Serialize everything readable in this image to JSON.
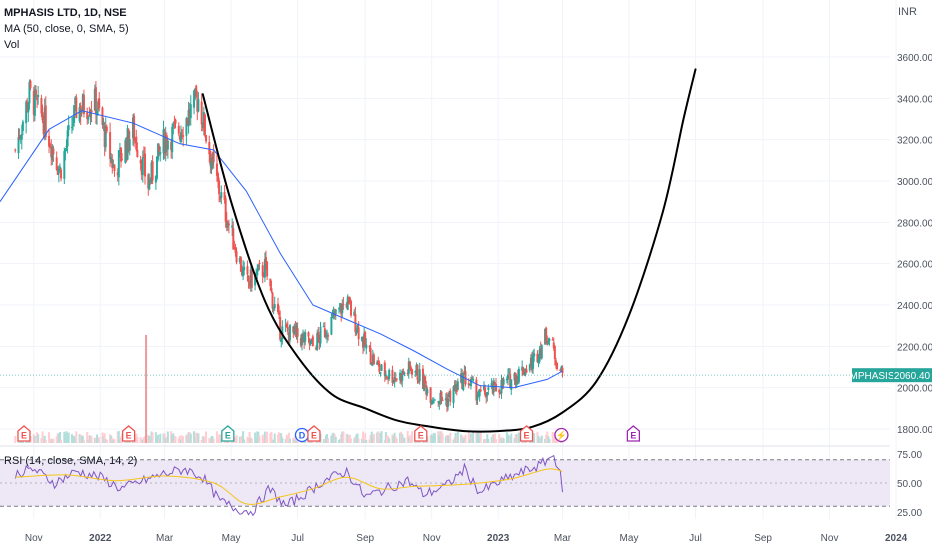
{
  "header": {
    "symbol_line": "MPHASIS LTD, 1D, NSE",
    "ma_line": "MA (50, close, 0, SMA, 5)",
    "vol_line": "Vol",
    "currency": "INR"
  },
  "rsi": {
    "legend": "RSI (14, close, SMA, 14, 2)",
    "ticks": [
      "75.00",
      "50.00",
      "25.00"
    ],
    "upper": 70,
    "lower": 30,
    "min": 20,
    "max": 77
  },
  "price_tag": {
    "symbol": "MPHASIS",
    "value": "2060.40"
  },
  "colors": {
    "up": "#26a69a",
    "down": "#ef5350",
    "ma": "#2962ff",
    "rsi": "#7e57c2",
    "rsi_ma": "#f5c518",
    "rsi_band": "#ede7f6",
    "curve": "#000000",
    "earnings": "#ef5350",
    "price_tag": "#26a69a"
  },
  "chart_data": {
    "type": "candlestick",
    "title": "MPHASIS LTD, 1D, NSE",
    "y_ticks": [
      "3600.00",
      "3400.00",
      "3200.00",
      "3000.00",
      "2800.00",
      "2600.00",
      "2400.00",
      "2200.00",
      "2000.00",
      "1800.00"
    ],
    "x_ticks": [
      "Nov",
      "2022",
      "Mar",
      "May",
      "Jul",
      "Sep",
      "Nov",
      "2023",
      "Mar",
      "May",
      "Jul",
      "Sep",
      "Nov",
      "2024"
    ],
    "ylim": [
      1700,
      3800
    ],
    "last_price": 2060.4,
    "close_path": [
      {
        "date": "2021-10-15",
        "price": 3150
      },
      {
        "date": "2021-10-28",
        "price": 3420
      },
      {
        "date": "2021-11-10",
        "price": 3300
      },
      {
        "date": "2021-11-25",
        "price": 3050
      },
      {
        "date": "2021-12-10",
        "price": 3350
      },
      {
        "date": "2021-12-28",
        "price": 3380
      },
      {
        "date": "2022-01-14",
        "price": 3050
      },
      {
        "date": "2022-01-31",
        "price": 3250
      },
      {
        "date": "2022-02-14",
        "price": 2980
      },
      {
        "date": "2022-03-01",
        "price": 3200
      },
      {
        "date": "2022-03-15",
        "price": 3250
      },
      {
        "date": "2022-04-01",
        "price": 3400
      },
      {
        "date": "2022-04-15",
        "price": 3050
      },
      {
        "date": "2022-05-01",
        "price": 2750
      },
      {
        "date": "2022-05-15",
        "price": 2500
      },
      {
        "date": "2022-06-01",
        "price": 2580
      },
      {
        "date": "2022-06-15",
        "price": 2280
      },
      {
        "date": "2022-07-01",
        "price": 2250
      },
      {
        "date": "2022-07-15",
        "price": 2200
      },
      {
        "date": "2022-08-01",
        "price": 2320
      },
      {
        "date": "2022-08-15",
        "price": 2420
      },
      {
        "date": "2022-09-01",
        "price": 2200
      },
      {
        "date": "2022-09-15",
        "price": 2080
      },
      {
        "date": "2022-10-01",
        "price": 2050
      },
      {
        "date": "2022-10-15",
        "price": 2100
      },
      {
        "date": "2022-11-01",
        "price": 1960
      },
      {
        "date": "2022-11-15",
        "price": 1940
      },
      {
        "date": "2022-12-01",
        "price": 2050
      },
      {
        "date": "2022-12-15",
        "price": 1960
      },
      {
        "date": "2023-01-01",
        "price": 2000
      },
      {
        "date": "2023-01-15",
        "price": 2050
      },
      {
        "date": "2023-02-01",
        "price": 2120
      },
      {
        "date": "2023-02-15",
        "price": 2260
      },
      {
        "date": "2023-03-01",
        "price": 2060.4
      }
    ],
    "ma50": [
      {
        "date": "2021-10-01",
        "value": 2900
      },
      {
        "date": "2021-11-15",
        "value": 3250
      },
      {
        "date": "2021-12-15",
        "value": 3340
      },
      {
        "date": "2022-01-31",
        "value": 3280
      },
      {
        "date": "2022-03-15",
        "value": 3180
      },
      {
        "date": "2022-04-15",
        "value": 3150
      },
      {
        "date": "2022-05-15",
        "value": 2950
      },
      {
        "date": "2022-06-15",
        "value": 2650
      },
      {
        "date": "2022-07-15",
        "value": 2400
      },
      {
        "date": "2022-08-15",
        "value": 2330
      },
      {
        "date": "2022-09-15",
        "value": 2260
      },
      {
        "date": "2022-10-15",
        "value": 2180
      },
      {
        "date": "2022-11-15",
        "value": 2090
      },
      {
        "date": "2022-12-15",
        "value": 2010
      },
      {
        "date": "2023-01-15",
        "value": 2000
      },
      {
        "date": "2023-02-15",
        "value": 2040
      },
      {
        "date": "2023-03-01",
        "value": 2080
      }
    ],
    "cup_curve": [
      {
        "date": "2022-04-05",
        "price": 3420
      },
      {
        "date": "2022-05-01",
        "price": 2900
      },
      {
        "date": "2022-06-01",
        "price": 2420
      },
      {
        "date": "2022-07-01",
        "price": 2150
      },
      {
        "date": "2022-08-01",
        "price": 1970
      },
      {
        "date": "2022-09-01",
        "price": 1900
      },
      {
        "date": "2022-10-01",
        "price": 1840
      },
      {
        "date": "2022-11-01",
        "price": 1810
      },
      {
        "date": "2022-12-01",
        "price": 1790
      },
      {
        "date": "2023-01-01",
        "price": 1790
      },
      {
        "date": "2023-02-01",
        "price": 1810
      },
      {
        "date": "2023-03-01",
        "price": 1880
      },
      {
        "date": "2023-04-01",
        "price": 2030
      },
      {
        "date": "2023-05-01",
        "price": 2350
      },
      {
        "date": "2023-06-01",
        "price": 2850
      },
      {
        "date": "2023-06-20",
        "price": 3300
      },
      {
        "date": "2023-07-01",
        "price": 3540
      }
    ],
    "event_markers": [
      {
        "date": "2021-10-23",
        "label": "E",
        "kind": "earnings"
      },
      {
        "date": "2022-01-27",
        "label": "E",
        "kind": "earnings"
      },
      {
        "date": "2022-04-28",
        "label": "E",
        "kind": "earnings-future"
      },
      {
        "date": "2022-07-05",
        "label": "D",
        "kind": "dividend"
      },
      {
        "date": "2022-07-16",
        "label": "E",
        "kind": "earnings"
      },
      {
        "date": "2022-10-22",
        "label": "E",
        "kind": "earnings"
      },
      {
        "date": "2023-01-27",
        "label": "E",
        "kind": "earnings"
      },
      {
        "date": "2023-02-28",
        "label": "⚡",
        "kind": "split"
      },
      {
        "date": "2023-05-05",
        "label": "E",
        "kind": "earnings-future"
      }
    ],
    "rsi_series": [
      {
        "date": "2021-10-15",
        "value": 58
      },
      {
        "date": "2021-11-01",
        "value": 62
      },
      {
        "date": "2021-11-20",
        "value": 50
      },
      {
        "date": "2021-12-10",
        "value": 60
      },
      {
        "date": "2022-01-01",
        "value": 55
      },
      {
        "date": "2022-01-20",
        "value": 45
      },
      {
        "date": "2022-02-10",
        "value": 52
      },
      {
        "date": "2022-03-01",
        "value": 58
      },
      {
        "date": "2022-03-20",
        "value": 62
      },
      {
        "date": "2022-04-05",
        "value": 55
      },
      {
        "date": "2022-04-20",
        "value": 35
      },
      {
        "date": "2022-05-05",
        "value": 28
      },
      {
        "date": "2022-05-20",
        "value": 25
      },
      {
        "date": "2022-06-05",
        "value": 45
      },
      {
        "date": "2022-06-20",
        "value": 30
      },
      {
        "date": "2022-07-10",
        "value": 42
      },
      {
        "date": "2022-07-25",
        "value": 52
      },
      {
        "date": "2022-08-15",
        "value": 60
      },
      {
        "date": "2022-09-01",
        "value": 38
      },
      {
        "date": "2022-09-20",
        "value": 45
      },
      {
        "date": "2022-10-10",
        "value": 52
      },
      {
        "date": "2022-10-25",
        "value": 40
      },
      {
        "date": "2022-11-15",
        "value": 48
      },
      {
        "date": "2022-12-01",
        "value": 62
      },
      {
        "date": "2022-12-15",
        "value": 42
      },
      {
        "date": "2023-01-05",
        "value": 52
      },
      {
        "date": "2023-01-25",
        "value": 60
      },
      {
        "date": "2023-02-10",
        "value": 66
      },
      {
        "date": "2023-02-20",
        "value": 74
      },
      {
        "date": "2023-02-27",
        "value": 62
      },
      {
        "date": "2023-03-01",
        "value": 38
      }
    ],
    "rsi_ma_series": [
      {
        "date": "2021-10-15",
        "value": 55
      },
      {
        "date": "2021-12-01",
        "value": 57
      },
      {
        "date": "2022-01-15",
        "value": 52
      },
      {
        "date": "2022-03-01",
        "value": 56
      },
      {
        "date": "2022-04-15",
        "value": 50
      },
      {
        "date": "2022-05-15",
        "value": 32
      },
      {
        "date": "2022-06-15",
        "value": 38
      },
      {
        "date": "2022-07-15",
        "value": 45
      },
      {
        "date": "2022-08-15",
        "value": 55
      },
      {
        "date": "2022-09-15",
        "value": 45
      },
      {
        "date": "2022-10-15",
        "value": 47
      },
      {
        "date": "2022-11-15",
        "value": 48
      },
      {
        "date": "2022-12-15",
        "value": 50
      },
      {
        "date": "2023-01-15",
        "value": 54
      },
      {
        "date": "2023-02-15",
        "value": 62
      },
      {
        "date": "2023-03-01",
        "value": 60
      }
    ]
  }
}
